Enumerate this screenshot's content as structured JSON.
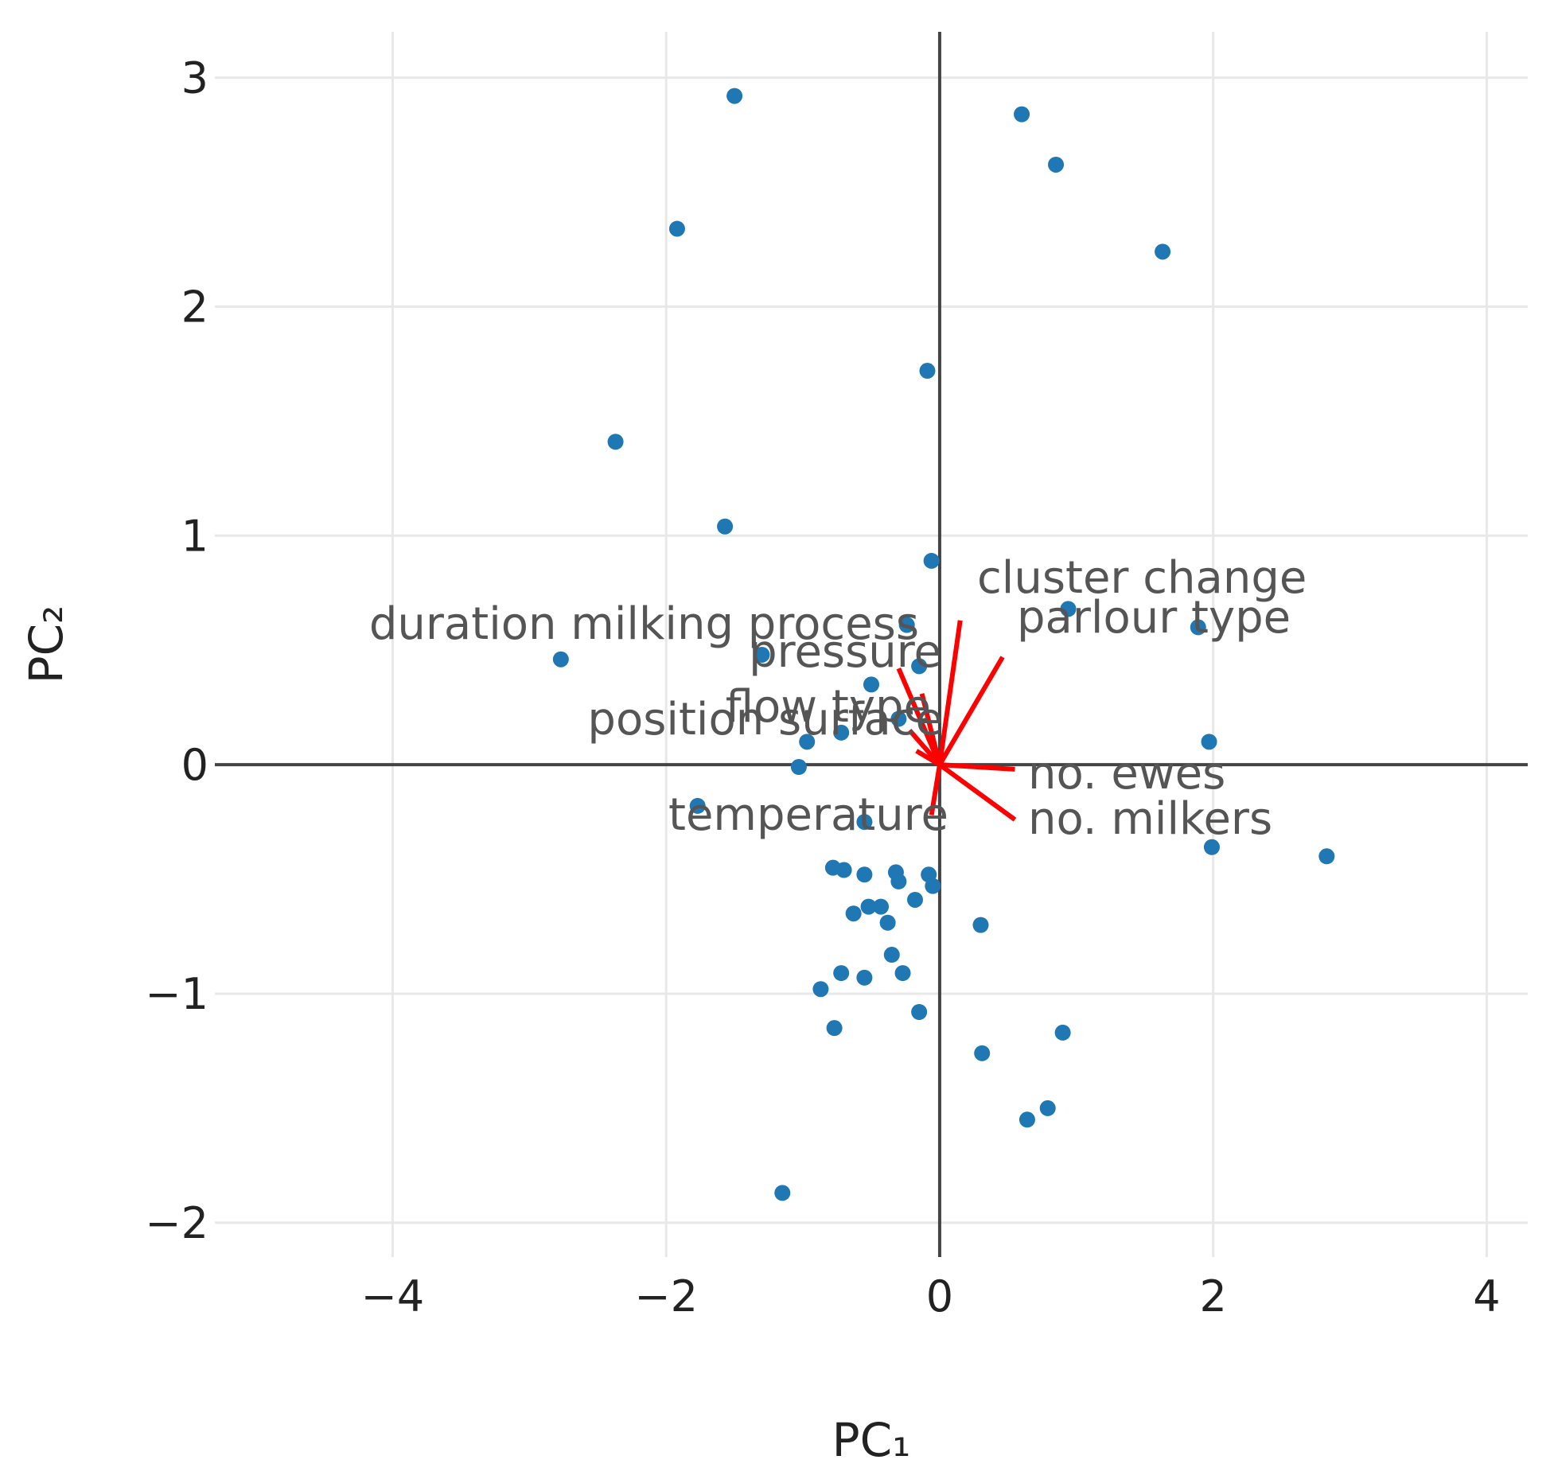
{
  "chart_data": {
    "type": "scatter",
    "title": "",
    "xlabel": "PC₁",
    "ylabel": "PC₂",
    "xlim": [
      -5.3,
      4.3
    ],
    "ylim": [
      -2.15,
      3.2
    ],
    "x_ticks": [
      -4,
      -2,
      0,
      2,
      4
    ],
    "y_ticks": [
      -2,
      -1,
      0,
      1,
      2,
      3
    ],
    "x_tick_labels": [
      "−4",
      "−2",
      "0",
      "2",
      "4"
    ],
    "y_tick_labels": [
      "−2",
      "−1",
      "0",
      "1",
      "2",
      "3"
    ],
    "grid": true,
    "legend": "none",
    "colors": {
      "points": "#1f77b4",
      "loadings": "#ff0000",
      "zero_axes": "#444444",
      "grid": "#e8e8e8"
    },
    "points": [
      {
        "x": -1.5,
        "y": 2.92
      },
      {
        "x": 0.6,
        "y": 2.84
      },
      {
        "x": 0.85,
        "y": 2.62
      },
      {
        "x": -1.92,
        "y": 2.34
      },
      {
        "x": 1.63,
        "y": 2.24
      },
      {
        "x": -0.09,
        "y": 1.72
      },
      {
        "x": -2.37,
        "y": 1.41
      },
      {
        "x": -1.57,
        "y": 1.04
      },
      {
        "x": -0.06,
        "y": 0.89
      },
      {
        "x": 0.94,
        "y": 0.68
      },
      {
        "x": 1.89,
        "y": 0.6
      },
      {
        "x": -0.24,
        "y": 0.61
      },
      {
        "x": -1.3,
        "y": 0.48
      },
      {
        "x": -2.77,
        "y": 0.46
      },
      {
        "x": -0.15,
        "y": 0.43
      },
      {
        "x": -0.5,
        "y": 0.35
      },
      {
        "x": -0.3,
        "y": 0.2
      },
      {
        "x": -0.72,
        "y": 0.14
      },
      {
        "x": -0.97,
        "y": 0.1
      },
      {
        "x": 1.97,
        "y": 0.1
      },
      {
        "x": -1.03,
        "y": -0.01
      },
      {
        "x": -1.77,
        "y": -0.18
      },
      {
        "x": -0.55,
        "y": -0.25
      },
      {
        "x": 1.99,
        "y": -0.36
      },
      {
        "x": 2.83,
        "y": -0.4
      },
      {
        "x": -0.78,
        "y": -0.45
      },
      {
        "x": -0.7,
        "y": -0.46
      },
      {
        "x": -0.55,
        "y": -0.48
      },
      {
        "x": -0.32,
        "y": -0.47
      },
      {
        "x": -0.08,
        "y": -0.48
      },
      {
        "x": -0.3,
        "y": -0.51
      },
      {
        "x": -0.05,
        "y": -0.53
      },
      {
        "x": -0.18,
        "y": -0.59
      },
      {
        "x": -0.52,
        "y": -0.62
      },
      {
        "x": -0.43,
        "y": -0.62
      },
      {
        "x": -0.63,
        "y": -0.65
      },
      {
        "x": -0.38,
        "y": -0.69
      },
      {
        "x": 0.3,
        "y": -0.7
      },
      {
        "x": -0.35,
        "y": -0.83
      },
      {
        "x": -0.72,
        "y": -0.91
      },
      {
        "x": -0.27,
        "y": -0.91
      },
      {
        "x": -0.55,
        "y": -0.93
      },
      {
        "x": -0.87,
        "y": -0.98
      },
      {
        "x": -0.15,
        "y": -1.08
      },
      {
        "x": -0.77,
        "y": -1.15
      },
      {
        "x": 0.9,
        "y": -1.17
      },
      {
        "x": 0.31,
        "y": -1.26
      },
      {
        "x": 0.79,
        "y": -1.5
      },
      {
        "x": 0.64,
        "y": -1.55
      },
      {
        "x": -1.15,
        "y": -1.87
      }
    ],
    "loadings": [
      {
        "name": "cluster change",
        "x": 0.15,
        "y": 0.63
      },
      {
        "name": "parlour type",
        "x": 0.46,
        "y": 0.47
      },
      {
        "name": "duration milking process",
        "x": -0.3,
        "y": 0.42
      },
      {
        "name": "pressure",
        "x": -0.13,
        "y": 0.31
      },
      {
        "name": "flow type",
        "x": -0.22,
        "y": 0.15
      },
      {
        "name": "position surface",
        "x": -0.17,
        "y": 0.06
      },
      {
        "name": "no. ewes",
        "x": 0.55,
        "y": -0.02
      },
      {
        "name": "no. milkers",
        "x": 0.55,
        "y": -0.24
      },
      {
        "name": "temperature",
        "x": -0.06,
        "y": -0.22
      }
    ]
  }
}
